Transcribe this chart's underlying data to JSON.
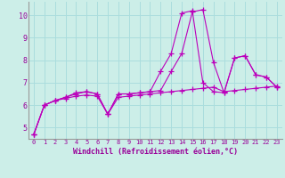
{
  "xlabel": "Windchill (Refroidissement éolien,°C)",
  "bg_color": "#cceee8",
  "grid_color": "#aadddd",
  "line_color": "#bb00bb",
  "xlim": [
    -0.5,
    23.5
  ],
  "ylim": [
    4.5,
    10.6
  ],
  "xticks": [
    0,
    1,
    2,
    3,
    4,
    5,
    6,
    7,
    8,
    9,
    10,
    11,
    12,
    13,
    14,
    15,
    16,
    17,
    18,
    19,
    20,
    21,
    22,
    23
  ],
  "yticks": [
    5,
    6,
    7,
    8,
    9,
    10
  ],
  "line1_x": [
    0,
    1,
    2,
    3,
    4,
    5,
    6,
    7,
    8,
    9,
    10,
    11,
    12,
    13,
    14,
    15,
    16,
    17,
    18,
    19,
    20,
    21,
    22,
    23
  ],
  "line1_y": [
    4.7,
    6.0,
    6.2,
    6.35,
    6.5,
    6.6,
    6.5,
    5.6,
    6.5,
    6.5,
    6.55,
    6.6,
    7.5,
    8.3,
    10.1,
    10.2,
    7.0,
    6.6,
    6.55,
    8.1,
    8.2,
    7.35,
    7.25,
    6.8
  ],
  "line2_x": [
    0,
    1,
    2,
    3,
    4,
    5,
    6,
    7,
    8,
    9,
    10,
    11,
    12,
    13,
    14,
    15,
    16,
    17,
    18,
    19,
    20,
    21,
    22,
    23
  ],
  "line2_y": [
    4.7,
    6.0,
    6.2,
    6.3,
    6.4,
    6.45,
    6.4,
    5.6,
    6.35,
    6.4,
    6.45,
    6.5,
    6.55,
    6.6,
    6.65,
    6.7,
    6.75,
    6.8,
    6.6,
    6.65,
    6.7,
    6.75,
    6.8,
    6.85
  ],
  "line3_x": [
    0,
    1,
    2,
    3,
    4,
    5,
    6,
    7,
    8,
    9,
    10,
    11,
    12,
    13,
    14,
    15,
    16,
    17,
    18,
    19,
    20,
    21,
    22,
    23
  ],
  "line3_y": [
    4.7,
    6.0,
    6.2,
    6.35,
    6.55,
    6.6,
    6.5,
    5.6,
    6.5,
    6.5,
    6.55,
    6.6,
    6.65,
    7.5,
    8.3,
    10.15,
    10.25,
    7.9,
    6.55,
    8.1,
    8.2,
    7.35,
    7.25,
    6.8
  ]
}
